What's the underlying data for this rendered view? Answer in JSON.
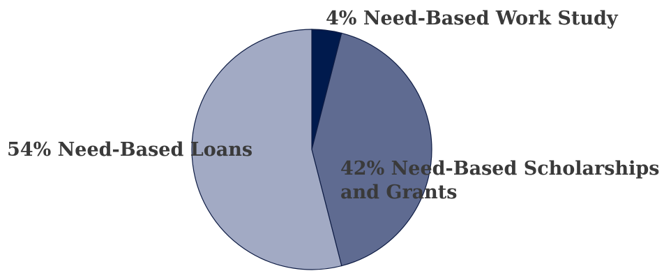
{
  "chart_data": {
    "type": "pie",
    "title": "",
    "legend": "none",
    "slices": [
      {
        "label": "Need-Based Work Study",
        "value": 4,
        "color": "#001a4d",
        "display_lines": [
          "4% Need-Based Work Study"
        ]
      },
      {
        "label": "Need-Based Scholarships and Grants",
        "value": 42,
        "color": "#5f6b91",
        "display_lines": [
          "42% Need-Based Scholarships",
          "and Grants"
        ]
      },
      {
        "label": "Need-Based Loans",
        "value": 54,
        "color": "#a2aac4",
        "display_lines": [
          "54% Need-Based Loans"
        ]
      }
    ],
    "start_angle_deg": 0,
    "direction": "clockwise"
  }
}
